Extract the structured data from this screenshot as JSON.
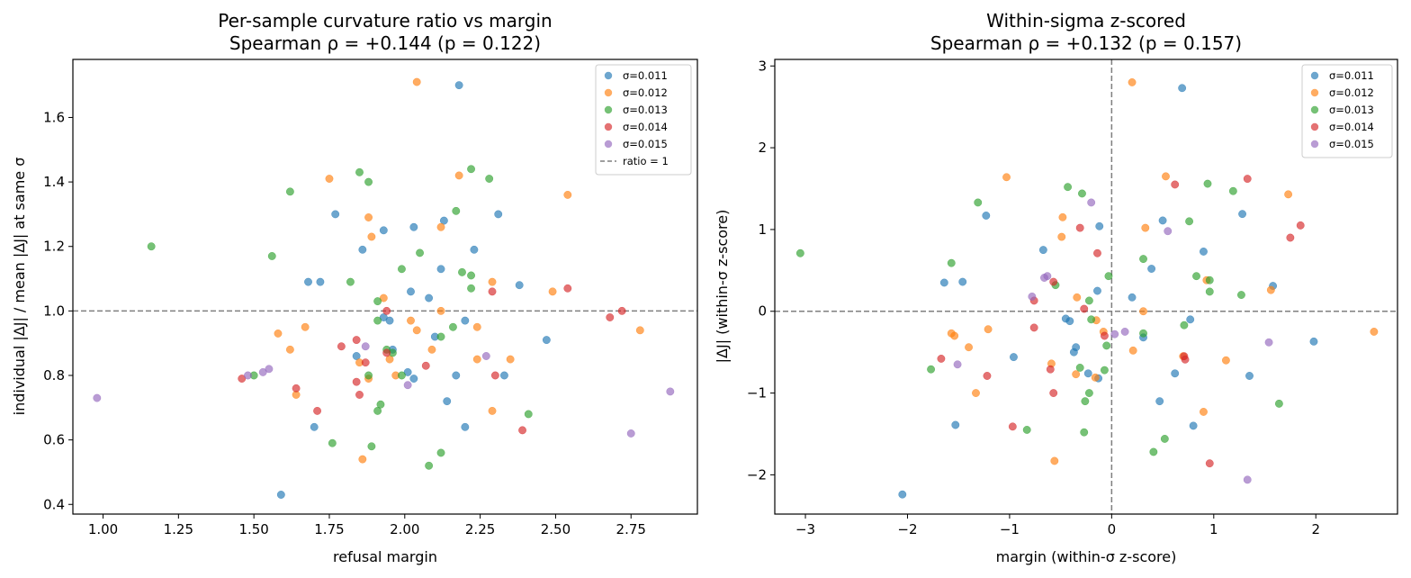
{
  "chart_data": [
    {
      "type": "scatter",
      "title": "Per-sample curvature ratio vs margin",
      "subtitle": "Spearman ρ = +0.144 (p = 0.122)",
      "xlabel": "refusal margin",
      "ylabel": "individual |ΔJ| / mean |ΔJ| at same σ",
      "xlim": [
        0.9,
        2.97
      ],
      "ylim": [
        0.37,
        1.78
      ],
      "xticks": [
        1.0,
        1.25,
        1.5,
        1.75,
        2.0,
        2.25,
        2.5,
        2.75
      ],
      "xtick_labels": [
        "1.00",
        "1.25",
        "1.50",
        "1.75",
        "2.00",
        "2.25",
        "2.50",
        "2.75"
      ],
      "yticks": [
        0.4,
        0.6,
        0.8,
        1.0,
        1.2,
        1.4,
        1.6
      ],
      "ytick_labels": [
        "0.4",
        "0.6",
        "0.8",
        "1.0",
        "1.2",
        "1.4",
        "1.6"
      ],
      "grid": false,
      "legend_position": "top-right",
      "reference_line": {
        "label": "ratio = 1",
        "orientation": "horizontal",
        "value": 1.0
      },
      "series": [
        {
          "name": "σ=0.011",
          "color": "#1f77b4",
          "points": [
            [
              2.18,
              1.7
            ],
            [
              1.77,
              1.3
            ],
            [
              1.93,
              1.25
            ],
            [
              2.03,
              1.26
            ],
            [
              2.13,
              1.28
            ],
            [
              2.31,
              1.3
            ],
            [
              1.86,
              1.19
            ],
            [
              2.23,
              1.19
            ],
            [
              1.68,
              1.09
            ],
            [
              1.72,
              1.09
            ],
            [
              2.02,
              1.06
            ],
            [
              2.08,
              1.04
            ],
            [
              2.38,
              1.08
            ],
            [
              2.12,
              1.13
            ],
            [
              1.93,
              0.98
            ],
            [
              1.95,
              0.97
            ],
            [
              2.2,
              0.97
            ],
            [
              1.84,
              0.86
            ],
            [
              1.96,
              0.88
            ],
            [
              2.1,
              0.92
            ],
            [
              2.47,
              0.91
            ],
            [
              2.01,
              0.81
            ],
            [
              2.03,
              0.79
            ],
            [
              2.17,
              0.8
            ],
            [
              2.33,
              0.8
            ],
            [
              2.14,
              0.72
            ],
            [
              1.7,
              0.64
            ],
            [
              2.2,
              0.64
            ],
            [
              1.59,
              0.43
            ]
          ]
        },
        {
          "name": "σ=0.012",
          "color": "#ff7f0e",
          "points": [
            [
              2.04,
              1.71
            ],
            [
              1.75,
              1.41
            ],
            [
              2.18,
              1.42
            ],
            [
              2.54,
              1.36
            ],
            [
              1.88,
              1.29
            ],
            [
              2.12,
              1.26
            ],
            [
              1.89,
              1.23
            ],
            [
              2.29,
              1.09
            ],
            [
              2.49,
              1.06
            ],
            [
              1.93,
              1.04
            ],
            [
              2.12,
              1.0
            ],
            [
              1.67,
              0.95
            ],
            [
              1.58,
              0.93
            ],
            [
              2.02,
              0.97
            ],
            [
              2.04,
              0.94
            ],
            [
              2.24,
              0.95
            ],
            [
              2.78,
              0.94
            ],
            [
              1.62,
              0.88
            ],
            [
              2.09,
              0.88
            ],
            [
              1.85,
              0.84
            ],
            [
              1.95,
              0.85
            ],
            [
              2.24,
              0.85
            ],
            [
              2.35,
              0.85
            ],
            [
              1.97,
              0.8
            ],
            [
              1.88,
              0.79
            ],
            [
              1.64,
              0.74
            ],
            [
              2.29,
              0.69
            ],
            [
              1.86,
              0.54
            ]
          ]
        },
        {
          "name": "σ=0.013",
          "color": "#2ca02c",
          "points": [
            [
              1.16,
              1.2
            ],
            [
              1.85,
              1.43
            ],
            [
              1.88,
              1.4
            ],
            [
              2.22,
              1.44
            ],
            [
              2.28,
              1.41
            ],
            [
              1.62,
              1.37
            ],
            [
              2.17,
              1.31
            ],
            [
              1.56,
              1.17
            ],
            [
              2.05,
              1.18
            ],
            [
              1.99,
              1.13
            ],
            [
              1.82,
              1.09
            ],
            [
              2.19,
              1.12
            ],
            [
              2.22,
              1.11
            ],
            [
              2.22,
              1.07
            ],
            [
              1.91,
              1.03
            ],
            [
              1.91,
              0.97
            ],
            [
              1.94,
              0.88
            ],
            [
              1.96,
              0.87
            ],
            [
              2.16,
              0.95
            ],
            [
              2.12,
              0.92
            ],
            [
              1.5,
              0.8
            ],
            [
              1.88,
              0.8
            ],
            [
              1.99,
              0.8
            ],
            [
              1.92,
              0.71
            ],
            [
              1.91,
              0.69
            ],
            [
              2.41,
              0.68
            ],
            [
              1.76,
              0.59
            ],
            [
              1.89,
              0.58
            ],
            [
              2.12,
              0.56
            ],
            [
              2.08,
              0.52
            ]
          ]
        },
        {
          "name": "σ=0.014",
          "color": "#d62728",
          "points": [
            [
              1.46,
              0.79
            ],
            [
              1.64,
              0.76
            ],
            [
              1.71,
              0.69
            ],
            [
              1.79,
              0.89
            ],
            [
              1.84,
              0.91
            ],
            [
              1.87,
              0.84
            ],
            [
              1.94,
              0.87
            ],
            [
              1.94,
              1.0
            ],
            [
              1.84,
              0.78
            ],
            [
              1.85,
              0.74
            ],
            [
              2.07,
              0.83
            ],
            [
              2.29,
              1.06
            ],
            [
              2.3,
              0.8
            ],
            [
              2.39,
              0.63
            ],
            [
              2.54,
              1.07
            ],
            [
              2.68,
              0.98
            ],
            [
              2.72,
              1.0
            ]
          ]
        },
        {
          "name": "σ=0.015",
          "color": "#9467bd",
          "points": [
            [
              0.98,
              0.73
            ],
            [
              1.48,
              0.8
            ],
            [
              1.53,
              0.81
            ],
            [
              1.55,
              0.82
            ],
            [
              1.87,
              0.89
            ],
            [
              2.01,
              0.77
            ],
            [
              2.27,
              0.86
            ],
            [
              2.75,
              0.62
            ],
            [
              2.88,
              0.75
            ]
          ]
        }
      ]
    },
    {
      "type": "scatter",
      "title": "Within-sigma z-scored",
      "subtitle": "Spearman ρ = +0.132 (p = 0.157)",
      "xlabel": "margin (within-σ z-score)",
      "ylabel": "|ΔJ| (within-σ z-score)",
      "xlim": [
        -3.3,
        2.8
      ],
      "ylim": [
        -2.48,
        3.08
      ],
      "xticks": [
        -3,
        -2,
        -1,
        0,
        1,
        2
      ],
      "xtick_labels": [
        "−3",
        "−2",
        "−1",
        "0",
        "1",
        "2"
      ],
      "yticks": [
        -2,
        -1,
        0,
        1,
        2,
        3
      ],
      "ytick_labels": [
        "−2",
        "−1",
        "0",
        "1",
        "2",
        "3"
      ],
      "grid": false,
      "legend_position": "top-right",
      "reference_lines": [
        {
          "orientation": "horizontal",
          "value": 0
        },
        {
          "orientation": "vertical",
          "value": 0
        }
      ],
      "series": [
        {
          "name": "σ=0.011",
          "color": "#1f77b4",
          "points": [
            [
              0.69,
              2.73
            ],
            [
              -1.23,
              1.17
            ],
            [
              1.28,
              1.19
            ],
            [
              0.5,
              1.11
            ],
            [
              -0.12,
              1.04
            ],
            [
              -0.67,
              0.75
            ],
            [
              0.9,
              0.73
            ],
            [
              0.39,
              0.52
            ],
            [
              -1.64,
              0.35
            ],
            [
              -1.46,
              0.36
            ],
            [
              0.2,
              0.17
            ],
            [
              -0.14,
              0.25
            ],
            [
              1.58,
              0.31
            ],
            [
              -0.45,
              -0.09
            ],
            [
              -0.41,
              -0.12
            ],
            [
              0.77,
              -0.1
            ],
            [
              -0.35,
              -0.44
            ],
            [
              -0.37,
              -0.5
            ],
            [
              -0.23,
              -0.76
            ],
            [
              -0.13,
              -0.82
            ],
            [
              0.31,
              -0.32
            ],
            [
              1.98,
              -0.37
            ],
            [
              -0.96,
              -0.56
            ],
            [
              0.62,
              -0.76
            ],
            [
              1.35,
              -0.79
            ],
            [
              -1.53,
              -1.39
            ],
            [
              0.47,
              -1.1
            ],
            [
              0.8,
              -1.4
            ],
            [
              -2.05,
              -2.24
            ]
          ]
        },
        {
          "name": "σ=0.012",
          "color": "#ff7f0e",
          "points": [
            [
              0.2,
              2.8
            ],
            [
              -1.03,
              1.64
            ],
            [
              0.53,
              1.65
            ],
            [
              1.73,
              1.43
            ],
            [
              -0.48,
              1.15
            ],
            [
              0.33,
              1.02
            ],
            [
              -0.49,
              0.91
            ],
            [
              0.93,
              0.38
            ],
            [
              1.56,
              0.26
            ],
            [
              -0.34,
              0.17
            ],
            [
              0.31,
              0.0
            ],
            [
              -1.21,
              -0.22
            ],
            [
              -0.15,
              -0.11
            ],
            [
              -1.57,
              -0.27
            ],
            [
              -1.4,
              -0.44
            ],
            [
              -1.54,
              -0.3
            ],
            [
              -0.08,
              -0.25
            ],
            [
              0.21,
              -0.48
            ],
            [
              0.7,
              -0.55
            ],
            [
              -0.59,
              -0.64
            ],
            [
              -0.35,
              -0.77
            ],
            [
              -0.16,
              -0.81
            ],
            [
              1.12,
              -0.6
            ],
            [
              -1.33,
              -1.0
            ],
            [
              0.9,
              -1.23
            ],
            [
              2.57,
              -0.25
            ],
            [
              -0.56,
              -1.83
            ]
          ]
        },
        {
          "name": "σ=0.013",
          "color": "#2ca02c",
          "points": [
            [
              -3.05,
              0.71
            ],
            [
              -0.43,
              1.52
            ],
            [
              -0.29,
              1.44
            ],
            [
              0.94,
              1.56
            ],
            [
              1.19,
              1.47
            ],
            [
              -1.31,
              1.33
            ],
            [
              0.76,
              1.1
            ],
            [
              -1.57,
              0.59
            ],
            [
              -0.03,
              0.43
            ],
            [
              0.83,
              0.43
            ],
            [
              0.31,
              0.64
            ],
            [
              0.96,
              0.38
            ],
            [
              0.96,
              0.24
            ],
            [
              1.27,
              0.2
            ],
            [
              -0.55,
              0.32
            ],
            [
              -0.22,
              0.13
            ],
            [
              -0.2,
              -0.1
            ],
            [
              -0.05,
              -0.42
            ],
            [
              0.71,
              -0.17
            ],
            [
              0.31,
              -0.27
            ],
            [
              -1.77,
              -0.71
            ],
            [
              -0.31,
              -0.69
            ],
            [
              -0.07,
              -0.72
            ],
            [
              -0.22,
              -1.0
            ],
            [
              -0.26,
              -1.1
            ],
            [
              1.64,
              -1.13
            ],
            [
              -0.83,
              -1.45
            ],
            [
              -0.27,
              -1.48
            ],
            [
              0.52,
              -1.56
            ],
            [
              0.41,
              -1.72
            ]
          ]
        },
        {
          "name": "σ=0.014",
          "color": "#d62728",
          "points": [
            [
              0.62,
              1.55
            ],
            [
              1.33,
              1.62
            ],
            [
              1.85,
              1.05
            ],
            [
              1.75,
              0.9
            ],
            [
              -0.31,
              1.02
            ],
            [
              -0.14,
              0.71
            ],
            [
              -0.76,
              0.13
            ],
            [
              -0.57,
              0.36
            ],
            [
              -0.27,
              0.03
            ],
            [
              -0.07,
              -0.3
            ],
            [
              -0.6,
              -0.71
            ],
            [
              -1.67,
              -0.58
            ],
            [
              -1.22,
              -0.79
            ],
            [
              -0.76,
              -0.2
            ],
            [
              -0.57,
              -1.0
            ],
            [
              0.71,
              -0.55
            ],
            [
              0.72,
              -0.59
            ],
            [
              -0.97,
              -1.41
            ],
            [
              0.96,
              -1.86
            ]
          ]
        },
        {
          "name": "σ=0.015",
          "color": "#9467bd",
          "points": [
            [
              -0.2,
              1.33
            ],
            [
              0.55,
              0.98
            ],
            [
              -0.66,
              0.41
            ],
            [
              -0.63,
              0.43
            ],
            [
              -0.78,
              0.18
            ],
            [
              0.03,
              -0.28
            ],
            [
              0.13,
              -0.25
            ],
            [
              -1.51,
              -0.65
            ],
            [
              1.54,
              -0.38
            ],
            [
              1.33,
              -2.06
            ]
          ]
        }
      ]
    }
  ]
}
